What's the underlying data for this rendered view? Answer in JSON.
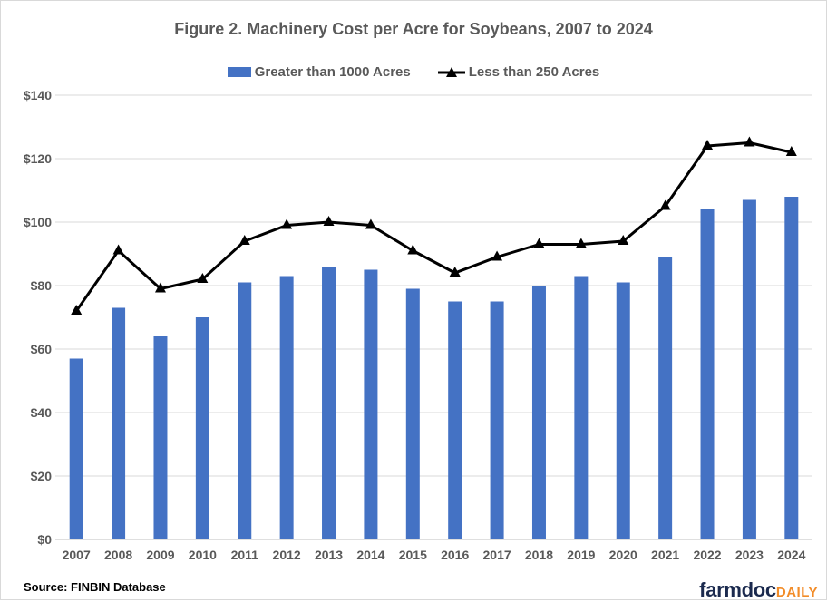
{
  "chart_data": {
    "type": "bar+line",
    "title": "Figure 2. Machinery Cost per Acre for Soybeans, 2007 to 2024",
    "categories": [
      "2007",
      "2008",
      "2009",
      "2010",
      "2011",
      "2012",
      "2013",
      "2014",
      "2015",
      "2016",
      "2017",
      "2018",
      "2019",
      "2020",
      "2021",
      "2022",
      "2023",
      "2024"
    ],
    "series": [
      {
        "name": "Greater than 1000 Acres",
        "type": "bar",
        "color": "#4472c4",
        "values": [
          57,
          73,
          64,
          70,
          81,
          83,
          86,
          85,
          79,
          75,
          75,
          80,
          83,
          81,
          89,
          104,
          107,
          108
        ]
      },
      {
        "name": "Less than 250 Acres",
        "type": "line",
        "marker": "triangle",
        "color": "#000000",
        "values": [
          72,
          91,
          79,
          82,
          94,
          99,
          100,
          99,
          91,
          84,
          89,
          93,
          93,
          94,
          105,
          124,
          125,
          122
        ]
      }
    ],
    "ylim": [
      0,
      140
    ],
    "yticks": [
      "$0",
      "$20",
      "$40",
      "$60",
      "$80",
      "$100",
      "$120",
      "$140"
    ],
    "grid": true,
    "legend": "top",
    "xlabel": "",
    "ylabel": ""
  },
  "source": "Source:  FINBIN Database",
  "logo": {
    "main": "farmdoc",
    "accent": "DAILY"
  }
}
